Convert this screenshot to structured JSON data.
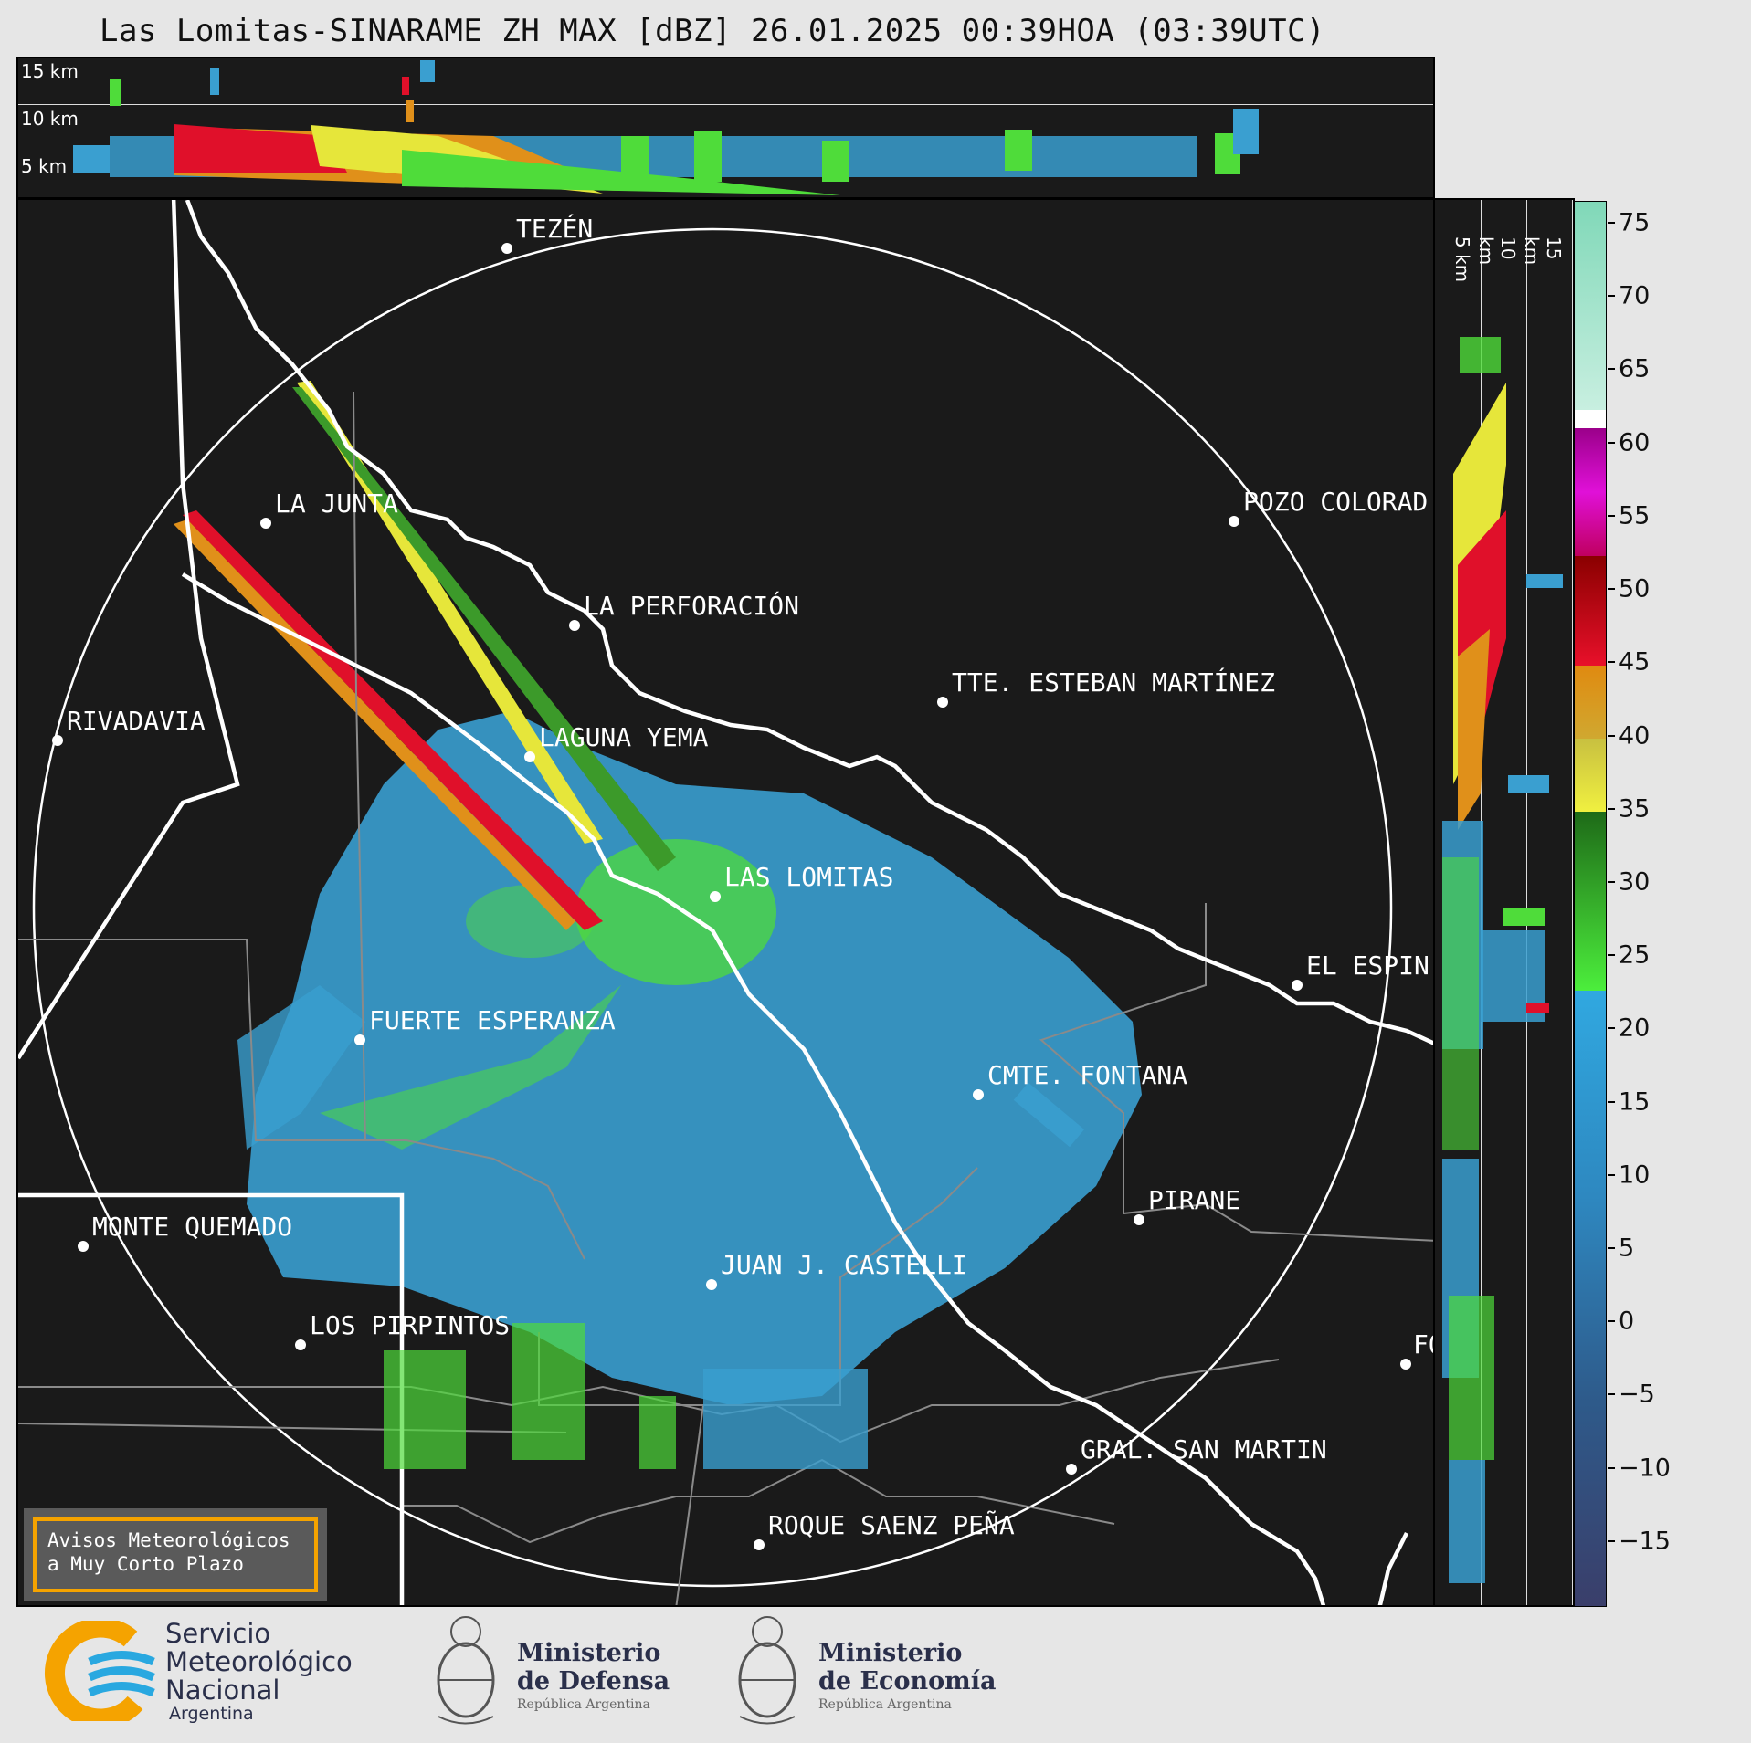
{
  "title": "Las Lomitas-SINARAME ZH MAX [dBZ] 26.01.2025 00:39HOA (03:39UTC)",
  "top_panel": {
    "labels": [
      "15 km",
      "10 km",
      "5 km"
    ]
  },
  "side_panel": {
    "labels": [
      "5 km",
      "10 km",
      "15 km"
    ]
  },
  "cities": [
    {
      "name": "TEZÉN",
      "id": "tezen"
    },
    {
      "name": "LA JUNTA",
      "id": "la-junta"
    },
    {
      "name": "POZO COLORAD",
      "id": "pozo-colorado"
    },
    {
      "name": "LA PERFORACIÓN",
      "id": "la-perforacion"
    },
    {
      "name": "TTE. ESTEBAN MARTÍNEZ",
      "id": "tte-esteban-martinez"
    },
    {
      "name": "RIVADAVIA",
      "id": "rivadavia"
    },
    {
      "name": "LAGUNA YEMA",
      "id": "laguna-yema"
    },
    {
      "name": "LAS LOMITAS",
      "id": "las-lomitas"
    },
    {
      "name": "EL ESPIN",
      "id": "el-espinillo"
    },
    {
      "name": "FUERTE ESPERANZA",
      "id": "fuerte-esperanza"
    },
    {
      "name": "CMTE. FONTANA",
      "id": "cmte-fontana"
    },
    {
      "name": "PIRANE",
      "id": "pirane"
    },
    {
      "name": "MONTE QUEMADO",
      "id": "monte-quemado"
    },
    {
      "name": "JUAN J. CASTELLI",
      "id": "juan-j-castelli"
    },
    {
      "name": "LOS PIRPINTOS",
      "id": "los-pirpintos"
    },
    {
      "name": "GRAL. SAN MARTIN",
      "id": "gral-san-martin"
    },
    {
      "name": "ROQUE SAENZ PEÑA",
      "id": "roque-saenz-pena"
    },
    {
      "name": "FO",
      "id": "formosa"
    }
  ],
  "colorbar": {
    "unit": "dBZ",
    "ticks": [
      "75",
      "70",
      "65",
      "60",
      "55",
      "50",
      "45",
      "40",
      "35",
      "30",
      "25",
      "20",
      "15",
      "10",
      "5",
      "0",
      "−5",
      "−10",
      "−15"
    ],
    "tick_values": [
      75,
      70,
      65,
      60,
      55,
      50,
      45,
      40,
      35,
      30,
      25,
      20,
      15,
      10,
      5,
      0,
      -5,
      -10,
      -15
    ],
    "range": [
      -19.5,
      76.5
    ]
  },
  "warning_box": {
    "line1": "Avisos Meteorológicos",
    "line2": "a Muy Corto Plazo"
  },
  "footer": {
    "smn": {
      "line1": "Servicio",
      "line2": "Meteorológico",
      "line3": "Nacional",
      "line4": "Argentina"
    },
    "defensa": {
      "line1": "Ministerio",
      "line2": "de Defensa",
      "line3": "República Argentina"
    },
    "economia": {
      "line1": "Ministerio",
      "line2": "de Economía",
      "line3": "República Argentina"
    }
  },
  "colors": {
    "panel_bg": "#1a1a1a",
    "weak_echo": "#3a9fd0",
    "green_echo": "#4fdc3a",
    "yellow_echo": "#e6e63a",
    "orange_echo": "#e0901a",
    "red_echo": "#e0102a",
    "smn_orange": "#f5a300",
    "smn_blue": "#29a8e0"
  }
}
